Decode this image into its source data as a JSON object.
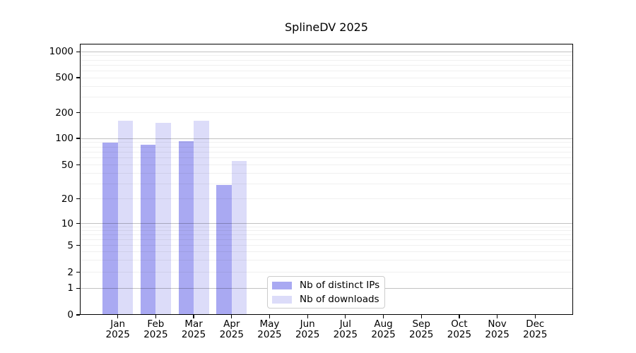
{
  "title": "SplineDV 2025",
  "colors": {
    "distinct_ips": "#a9a9f2",
    "downloads": "#dcdcf9",
    "axis": "#000000",
    "grid_major": "#c2c2c2",
    "grid_minor": "#f0f0f0",
    "legend_border": "#cccccc"
  },
  "legend": {
    "items": [
      {
        "label": "Nb of distinct IPs",
        "color_key": "distinct_ips"
      },
      {
        "label": "Nb of downloads",
        "color_key": "downloads"
      }
    ]
  },
  "y_axis": {
    "tick_values": [
      1000,
      500,
      200,
      100,
      50,
      20,
      10,
      5,
      2,
      1,
      0
    ],
    "tick_labels": [
      "1000",
      "500",
      "200",
      "100",
      "50",
      "20",
      "10",
      "5",
      "2",
      "1",
      "0"
    ]
  },
  "x_axis": {
    "months": [
      "Jan",
      "Feb",
      "Mar",
      "Apr",
      "May",
      "Jun",
      "Jul",
      "Aug",
      "Sep",
      "Oct",
      "Nov",
      "Dec"
    ],
    "year": "2025"
  },
  "chart_data": {
    "type": "bar",
    "title": "SplineDV 2025",
    "categories": [
      "Jan 2025",
      "Feb 2025",
      "Mar 2025",
      "Apr 2025",
      "May 2025",
      "Jun 2025",
      "Jul 2025",
      "Aug 2025",
      "Sep 2025",
      "Oct 2025",
      "Nov 2025",
      "Dec 2025"
    ],
    "series": [
      {
        "name": "Nb of distinct IPs",
        "key": "distinct_ips",
        "color": "#a9a9f2",
        "values": [
          90,
          84,
          93,
          29,
          0,
          0,
          0,
          0,
          0,
          0,
          0,
          0
        ]
      },
      {
        "name": "Nb of downloads",
        "key": "downloads",
        "color": "#dcdcf9",
        "values": [
          160,
          153,
          162,
          55,
          0,
          0,
          0,
          0,
          0,
          0,
          0,
          0
        ]
      }
    ],
    "xlabel": "",
    "ylabel": "",
    "yscale": "symlog",
    "y_ticks": [
      0,
      1,
      2,
      5,
      10,
      20,
      50,
      100,
      200,
      500,
      1000
    ],
    "ylim": [
      0,
      1000
    ],
    "grid": true,
    "legend_position": "lower center"
  }
}
